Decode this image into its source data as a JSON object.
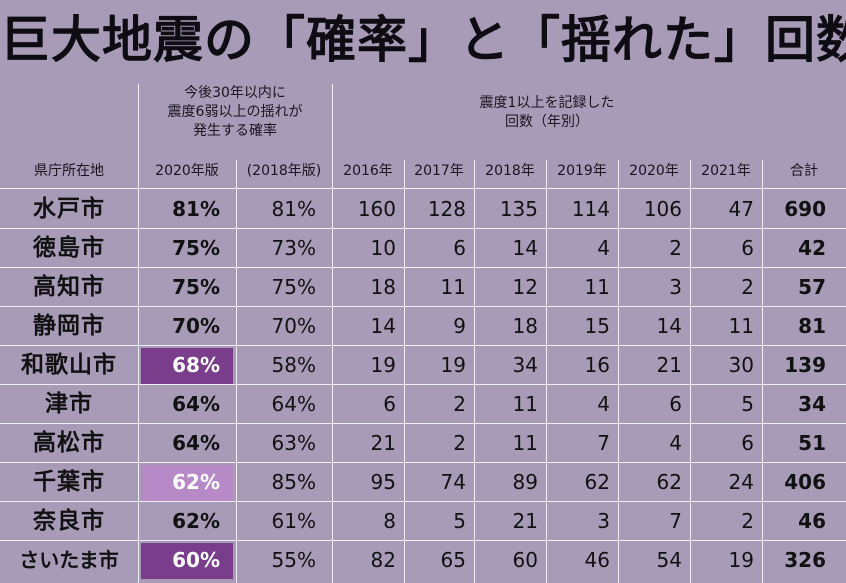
{
  "title": "巨大地震の「確率」と「揺れた」回数",
  "headers": {
    "prob_group": [
      "今後30年以内に",
      "震度6弱以上の揺れが",
      "発生する確率"
    ],
    "quake_group": [
      "震度1以上を記録した",
      "回数（年別）"
    ],
    "pref": "県庁所在地",
    "p2020": "2020年版",
    "p2018": "(2018年版)",
    "y2016": "2016年",
    "y2017": "2017年",
    "y2018": "2018年",
    "y2019": "2019年",
    "y2020": "2020年",
    "y2021": "2021年",
    "total": "合計"
  },
  "highlight_colors": {
    "dark": "#7a3d8c",
    "light": "#b789c6"
  },
  "rows": [
    {
      "city": "水戸市",
      "p2020": "81%",
      "p2018": "81%",
      "y2016": "160",
      "y2017": "128",
      "y2018": "135",
      "y2019": "114",
      "y2020": "106",
      "y2021": "47",
      "total": "690",
      "highlight": ""
    },
    {
      "city": "徳島市",
      "p2020": "75%",
      "p2018": "73%",
      "y2016": "10",
      "y2017": "6",
      "y2018": "14",
      "y2019": "4",
      "y2020": "2",
      "y2021": "6",
      "total": "42",
      "highlight": ""
    },
    {
      "city": "高知市",
      "p2020": "75%",
      "p2018": "75%",
      "y2016": "18",
      "y2017": "11",
      "y2018": "12",
      "y2019": "11",
      "y2020": "3",
      "y2021": "2",
      "total": "57",
      "highlight": ""
    },
    {
      "city": "静岡市",
      "p2020": "70%",
      "p2018": "70%",
      "y2016": "14",
      "y2017": "9",
      "y2018": "18",
      "y2019": "15",
      "y2020": "14",
      "y2021": "11",
      "total": "81",
      "highlight": ""
    },
    {
      "city": "和歌山市",
      "p2020": "68%",
      "p2018": "58%",
      "y2016": "19",
      "y2017": "19",
      "y2018": "34",
      "y2019": "16",
      "y2020": "21",
      "y2021": "30",
      "total": "139",
      "highlight": "dark"
    },
    {
      "city": "津市",
      "p2020": "64%",
      "p2018": "64%",
      "y2016": "6",
      "y2017": "2",
      "y2018": "11",
      "y2019": "4",
      "y2020": "6",
      "y2021": "5",
      "total": "34",
      "highlight": ""
    },
    {
      "city": "高松市",
      "p2020": "64%",
      "p2018": "63%",
      "y2016": "21",
      "y2017": "2",
      "y2018": "11",
      "y2019": "7",
      "y2020": "4",
      "y2021": "6",
      "total": "51",
      "highlight": ""
    },
    {
      "city": "千葉市",
      "p2020": "62%",
      "p2018": "85%",
      "y2016": "95",
      "y2017": "74",
      "y2018": "89",
      "y2019": "62",
      "y2020": "62",
      "y2021": "24",
      "total": "406",
      "highlight": "light"
    },
    {
      "city": "奈良市",
      "p2020": "62%",
      "p2018": "61%",
      "y2016": "8",
      "y2017": "5",
      "y2018": "21",
      "y2019": "3",
      "y2020": "7",
      "y2021": "2",
      "total": "46",
      "highlight": ""
    },
    {
      "city": "さいたま市",
      "p2020": "60%",
      "p2018": "55%",
      "y2016": "82",
      "y2017": "65",
      "y2018": "60",
      "y2019": "46",
      "y2020": "54",
      "y2021": "19",
      "total": "326",
      "highlight": "dark"
    }
  ]
}
